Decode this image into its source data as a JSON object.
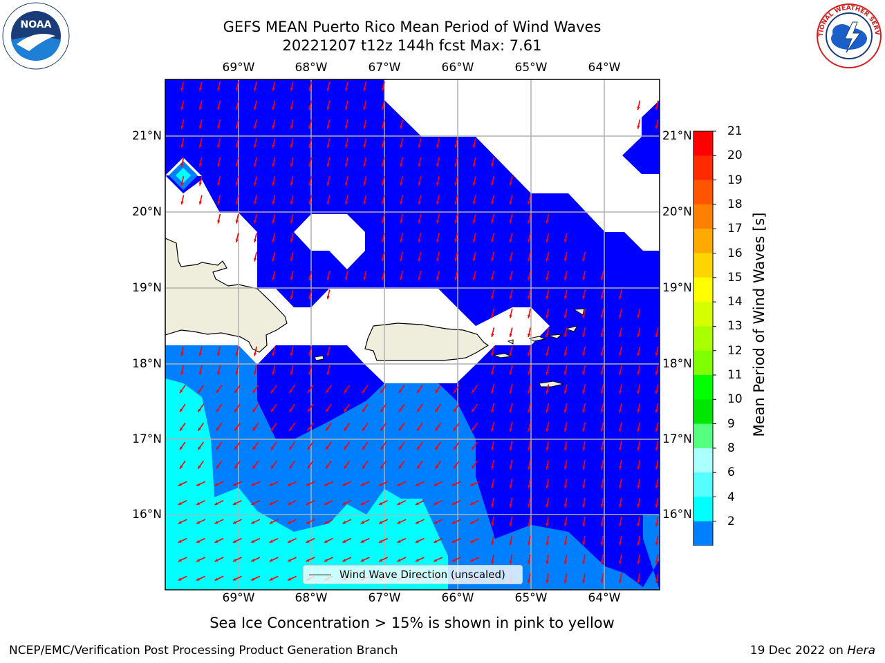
{
  "title": {
    "line1": "GEFS MEAN Puerto Rico Mean Period of Wind Waves",
    "line2": "20221207 t12z 144h fcst   Max: 7.61"
  },
  "lon_labels": [
    "69°W",
    "68°W",
    "67°W",
    "66°W",
    "65°W",
    "64°W"
  ],
  "lat_labels": [
    "21°N",
    "20°N",
    "19°N",
    "18°N",
    "17°N",
    "16°N"
  ],
  "colorbar": {
    "label": "Mean Period of Wind Waves [s]",
    "ticks": [
      "21",
      "20",
      "19",
      "18",
      "17",
      "16",
      "15",
      "14",
      "13",
      "12",
      "11",
      "10",
      "9",
      "8",
      "6",
      "4",
      "2"
    ],
    "colors": [
      "#ff0000",
      "#ff2a00",
      "#ff5500",
      "#ff8000",
      "#ffaa00",
      "#ffd500",
      "#ffff00",
      "#d5ff00",
      "#aaff00",
      "#80ff00",
      "#00ff00",
      "#00e600",
      "#55ff80",
      "#aaffff",
      "#55ffff",
      "#00ffff",
      "#0080ff",
      "#0000ff"
    ]
  },
  "legend": {
    "label": "Wind Wave Direction (unscaled)"
  },
  "note": "Sea Ice Concentration > 15% is shown in pink to yellow",
  "footer": {
    "left": "NCEP/EMC/Verification Post Processing Product Generation Branch",
    "right_date": "19 Dec 2022 on",
    "right_host": "Hera"
  },
  "logos": {
    "noaa": "NOAA",
    "nws": "NATIONAL WEATHER SERVICE"
  },
  "colors": {
    "deep_blue": "#0000ff",
    "mid_blue": "#0080ff",
    "cyan": "#00ffff",
    "land": "#efeedd",
    "arrow": "#ff0000"
  }
}
